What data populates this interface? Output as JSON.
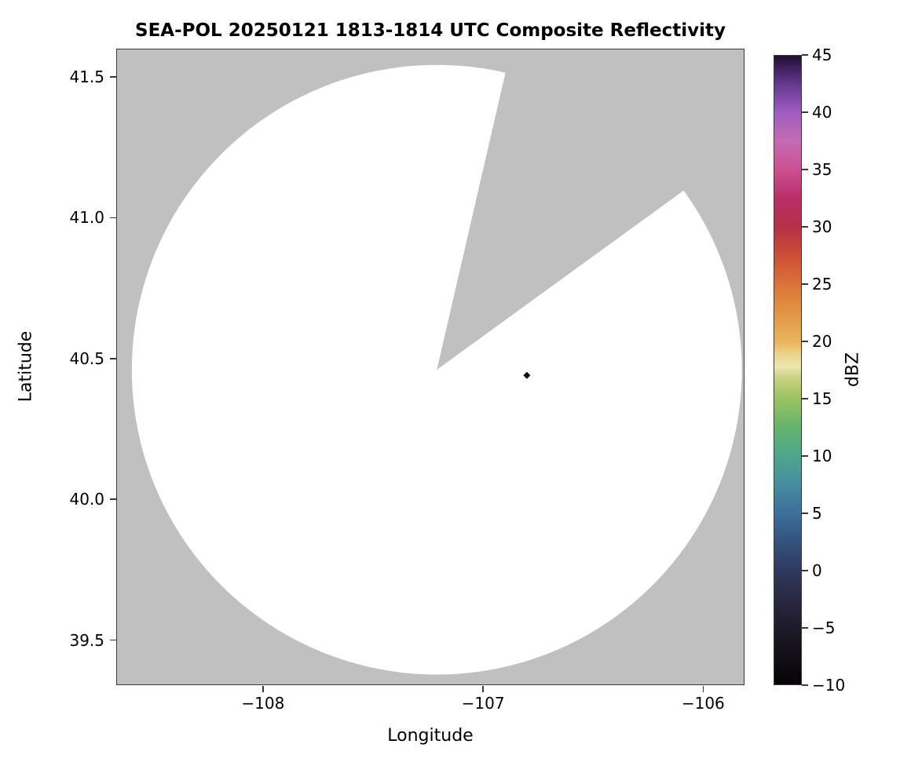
{
  "chart_data": {
    "type": "heatmap",
    "title": "SEA-POL 20250121 1813-1814 UTC Composite Reflectivity",
    "xlabel": "Longitude",
    "ylabel": "Latitude",
    "xlim": [
      -108.667,
      -105.812
    ],
    "ylim": [
      39.34,
      41.6
    ],
    "xticks": [
      -108,
      -107,
      -106
    ],
    "xtick_labels": [
      "−108",
      "−107",
      "−106"
    ],
    "yticks": [
      41.5,
      41.0,
      40.5,
      40.0,
      39.5
    ],
    "ytick_labels": [
      "41.5",
      "41.0",
      "40.5",
      "40.0",
      "39.5"
    ],
    "grid": false,
    "legend": "none",
    "colorbar": {
      "label": "dBZ",
      "min": -10,
      "max": 45,
      "ticks": [
        45,
        40,
        35,
        30,
        25,
        20,
        15,
        10,
        5,
        0,
        -5,
        -10
      ],
      "tick_labels": [
        "45",
        "40",
        "35",
        "30",
        "25",
        "20",
        "15",
        "10",
        "5",
        "0",
        "−5",
        "−10"
      ],
      "colormap_stops": [
        {
          "p": 0.0,
          "c": "#060405"
        },
        {
          "p": 0.05,
          "c": "#131019"
        },
        {
          "p": 0.091,
          "c": "#1e1b29"
        },
        {
          "p": 0.136,
          "c": "#282941"
        },
        {
          "p": 0.182,
          "c": "#2f3a5f"
        },
        {
          "p": 0.227,
          "c": "#35527e"
        },
        {
          "p": 0.273,
          "c": "#3d709b"
        },
        {
          "p": 0.318,
          "c": "#478da1"
        },
        {
          "p": 0.364,
          "c": "#4ea68b"
        },
        {
          "p": 0.409,
          "c": "#65b36f"
        },
        {
          "p": 0.455,
          "c": "#9ac45f"
        },
        {
          "p": 0.49,
          "c": "#cdd387"
        },
        {
          "p": 0.505,
          "c": "#ece7b0"
        },
        {
          "p": 0.527,
          "c": "#ebd287"
        },
        {
          "p": 0.545,
          "c": "#e8b55d"
        },
        {
          "p": 0.591,
          "c": "#e29544"
        },
        {
          "p": 0.636,
          "c": "#da7339"
        },
        {
          "p": 0.682,
          "c": "#cd4e35"
        },
        {
          "p": 0.727,
          "c": "#b43145"
        },
        {
          "p": 0.773,
          "c": "#bb2e68"
        },
        {
          "p": 0.818,
          "c": "#cc4f92"
        },
        {
          "p": 0.864,
          "c": "#c76ab4"
        },
        {
          "p": 0.909,
          "c": "#a05ec1"
        },
        {
          "p": 0.955,
          "c": "#64388f"
        },
        {
          "p": 1.0,
          "c": "#201033"
        }
      ]
    },
    "radar_coverage": {
      "center_lon": -107.21,
      "center_lat": 40.46,
      "radius_deg_lat": 1.085,
      "blocked_sector_azimuth_start_deg": 13,
      "blocked_sector_azimuth_end_deg": 54,
      "coverage_color": "#ffffff",
      "no_data_color": "#c0c0c0"
    },
    "echoes": [
      {
        "lon": -106.8,
        "lat": 40.44,
        "color": "#0e0e1c"
      }
    ]
  }
}
